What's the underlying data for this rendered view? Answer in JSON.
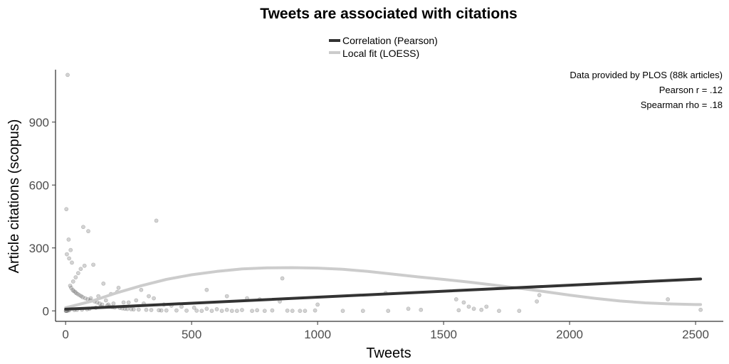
{
  "chart_data": {
    "type": "scatter",
    "title": "Tweets are associated with citations",
    "xlabel": "Tweets",
    "ylabel": "Article citations (scopus)",
    "xlim": [
      -40,
      2610
    ],
    "ylim": [
      -50,
      1150
    ],
    "xticks": [
      0,
      500,
      1000,
      1500,
      2000,
      2500
    ],
    "yticks": [
      0,
      300,
      600,
      900
    ],
    "grid": false,
    "legend_position": "top",
    "legend": [
      {
        "label": "Correlation (Pearson)",
        "color": "#333333"
      },
      {
        "label": "Local fit (LOESS)",
        "color": "#cccccc"
      }
    ],
    "annotations": [
      "Data provided by PLOS (88k articles)",
      "Pearson r = .12",
      "Spearman rho = .18"
    ],
    "series": [
      {
        "kind": "points",
        "color": "#808080",
        "x": [
          8,
          3,
          12,
          360,
          70,
          90,
          20,
          5,
          14,
          25,
          110,
          75,
          60,
          50,
          40,
          30,
          150,
          210,
          205,
          180,
          130,
          100,
          160,
          250,
          310,
          390,
          420,
          460,
          510,
          560,
          600,
          640,
          700,
          760,
          820,
          880,
          930,
          990,
          560,
          640,
          720,
          770,
          850,
          1000,
          860,
          1270,
          1360,
          1410,
          1560,
          1580,
          1600,
          1620,
          1650,
          1670,
          1550,
          1870,
          1880,
          2390,
          2520,
          300,
          330,
          350,
          280,
          230,
          190,
          170,
          140,
          120,
          95,
          85,
          65,
          45,
          35,
          15,
          10,
          6,
          4,
          2,
          1,
          18,
          22,
          28,
          32,
          38,
          42,
          48,
          55,
          62,
          68,
          78,
          88,
          98,
          115,
          125,
          135,
          145,
          165,
          175,
          185,
          195,
          215,
          225,
          235,
          245,
          260,
          270,
          290,
          320,
          340,
          370,
          380,
          400,
          440,
          480,
          520,
          540,
          580,
          620,
          660,
          680,
          740,
          790,
          900,
          950,
          1100,
          1180,
          1280,
          1720,
          1800
        ],
        "y": [
          1125,
          485,
          340,
          430,
          400,
          380,
          290,
          270,
          250,
          230,
          220,
          215,
          200,
          180,
          160,
          140,
          130,
          110,
          90,
          80,
          70,
          60,
          50,
          40,
          35,
          30,
          25,
          20,
          15,
          10,
          8,
          5,
          4,
          3,
          2,
          1,
          0,
          2,
          100,
          70,
          60,
          55,
          45,
          30,
          155,
          85,
          10,
          5,
          3,
          40,
          20,
          10,
          5,
          20,
          55,
          45,
          75,
          55,
          5,
          100,
          70,
          60,
          50,
          40,
          35,
          30,
          20,
          15,
          10,
          8,
          6,
          5,
          4,
          3,
          2,
          1,
          0,
          0,
          0,
          120,
          110,
          100,
          95,
          90,
          85,
          80,
          75,
          70,
          65,
          60,
          55,
          50,
          45,
          40,
          35,
          30,
          25,
          20,
          18,
          16,
          14,
          12,
          10,
          9,
          8,
          7,
          6,
          5,
          4,
          3,
          2,
          2,
          2,
          1,
          1,
          0,
          0,
          0,
          0,
          0,
          0,
          0,
          0,
          0,
          0,
          0,
          0,
          0,
          0
        ]
      },
      {
        "name": "Correlation (Pearson)",
        "kind": "line",
        "color": "#333333",
        "x": [
          0,
          2520
        ],
        "y": [
          8,
          152
        ]
      },
      {
        "name": "Local fit (LOESS)",
        "kind": "line",
        "color": "#cccccc",
        "x": [
          0,
          100,
          200,
          300,
          400,
          500,
          600,
          700,
          800,
          900,
          1000,
          1100,
          1200,
          1300,
          1400,
          1500,
          1600,
          1700,
          1800,
          1900,
          2000,
          2100,
          2200,
          2300,
          2400,
          2500,
          2520
        ],
        "y": [
          15,
          45,
          85,
          120,
          150,
          172,
          188,
          200,
          205,
          206,
          204,
          198,
          188,
          175,
          162,
          150,
          137,
          123,
          108,
          92,
          75,
          60,
          47,
          38,
          33,
          30,
          30
        ]
      }
    ]
  }
}
